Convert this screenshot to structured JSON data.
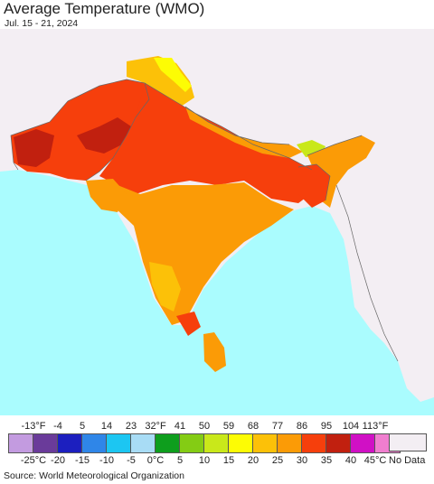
{
  "header": {
    "title": "Average Temperature (WMO)",
    "date_range": "Jul. 15 - 21, 2024"
  },
  "legend": {
    "fahrenheit_labels": [
      "-13°F",
      "-4",
      "5",
      "14",
      "23",
      "32°F",
      "41",
      "50",
      "59",
      "68",
      "77",
      "86",
      "95",
      "104",
      "113°F"
    ],
    "celsius_labels": [
      "-25°C",
      "-20",
      "-15",
      "-10",
      "-5",
      "0°C",
      "5",
      "10",
      "15",
      "20",
      "25",
      "30",
      "35",
      "40",
      "45°C"
    ],
    "colors": [
      "#c39be0",
      "#6a3b9a",
      "#1c1fbf",
      "#2f86e8",
      "#1cc6f2",
      "#a8dcf5",
      "#0e9e1d",
      "#84cc14",
      "#c9e81a",
      "#fdfc04",
      "#fcc108",
      "#fb9b06",
      "#f63f0c",
      "#c1200f",
      "#d010c5",
      "#f07ecf"
    ],
    "nodata_label": "No Data",
    "nodata_color": "#f3eef3"
  },
  "map": {
    "ocean_color": "#aafcfe",
    "land_nodata_color": "#f3eef3",
    "border_color": "#666666"
  },
  "footer": {
    "source": "Source: World Meteorological Organization"
  }
}
